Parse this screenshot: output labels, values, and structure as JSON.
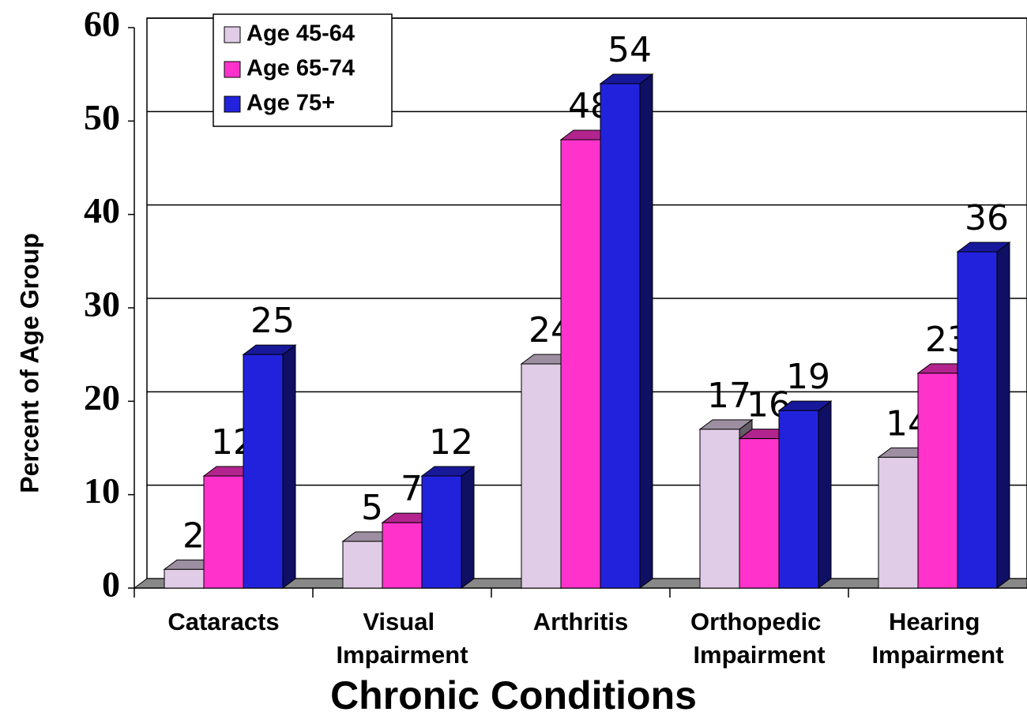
{
  "chart_data": {
    "type": "bar3d",
    "x_label": "Chronic Conditions",
    "y_label": "Percent of Age Group",
    "categories": [
      "Cataracts",
      "Visual Impairment",
      "Arthritis",
      "Orthopedic Impairment",
      "Hearing Impairment"
    ],
    "series": [
      {
        "name": "Age 45-64",
        "color": "#e0cce6",
        "values": [
          2,
          5,
          24,
          17,
          14
        ]
      },
      {
        "name": "Age 65-74",
        "color": "#ff33cc",
        "values": [
          12,
          7,
          48,
          16,
          23
        ]
      },
      {
        "name": "Age 75+",
        "color": "#2222dd",
        "values": [
          25,
          12,
          54,
          19,
          36
        ]
      }
    ],
    "ylim": [
      0,
      60
    ],
    "yticks": [
      0,
      10,
      20,
      30,
      40,
      50,
      60
    ],
    "grid": true,
    "legend": "upper left"
  }
}
